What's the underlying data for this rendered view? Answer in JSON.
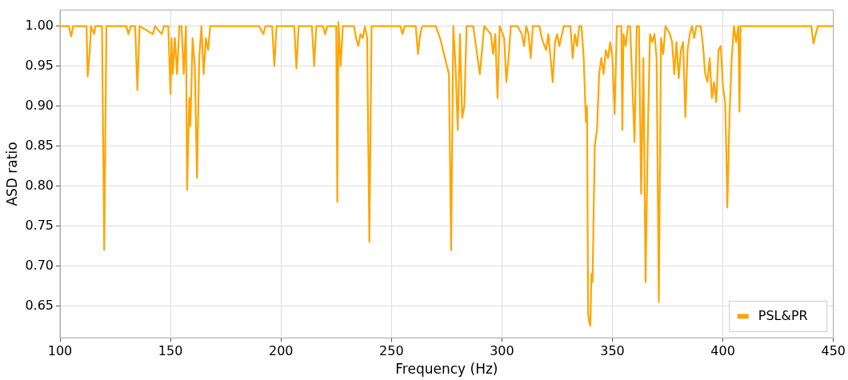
{
  "chart_data": {
    "type": "line",
    "xlabel": "Frequency (Hz)",
    "ylabel": "ASD ratio",
    "xlim": [
      100,
      450
    ],
    "xticks": [
      100,
      150,
      200,
      250,
      300,
      350,
      400,
      450
    ],
    "ylim": [
      0.61,
      1.02
    ],
    "yticks": [
      0.65,
      {
        "value": 0.7,
        "label": "0.70"
      },
      0.75,
      {
        "value": 0.8,
        "label": "0.80"
      },
      0.85,
      {
        "value": 0.9,
        "label": "0.90"
      },
      0.95,
      {
        "value": 1.0,
        "label": "1.00"
      }
    ],
    "grid": true,
    "legend": "bottom right",
    "marker": "none",
    "line_style": "solid",
    "series": [
      {
        "name": "PSL&PR",
        "color": "#ffa500",
        "x": [
          100,
          104,
          105,
          106,
          112,
          112.5,
          113.5,
          114,
          115.5,
          116,
          119,
          120,
          121,
          130,
          131,
          132,
          134,
          135,
          136,
          142,
          143,
          146,
          147,
          149,
          150,
          150.5,
          151,
          152,
          153,
          154,
          155,
          156,
          157,
          157.5,
          158.5,
          159,
          160,
          161,
          162,
          163,
          164,
          165,
          166,
          167,
          168,
          190,
          192,
          193,
          196,
          197,
          198,
          206,
          207,
          208,
          214,
          215,
          216,
          219,
          220,
          221,
          225,
          225.5,
          226,
          227,
          228,
          233,
          234,
          235,
          236,
          237,
          238,
          239,
          240,
          241,
          254,
          255,
          256,
          261,
          262,
          263,
          264,
          270,
          272,
          276,
          277,
          278,
          279,
          280,
          281,
          282,
          283,
          284,
          287,
          289,
          290,
          292,
          295,
          296,
          297,
          298,
          299,
          301,
          302,
          303,
          304,
          307,
          309,
          310,
          311,
          312,
          313,
          314,
          317,
          318,
          320,
          321,
          322,
          323,
          324,
          325,
          326,
          328,
          331,
          332,
          333,
          334,
          335,
          336,
          337,
          338,
          338.5,
          339,
          339.5,
          340,
          340.5,
          341,
          342,
          343,
          344,
          345,
          346,
          347,
          348,
          349,
          350,
          351,
          352,
          354,
          354.5,
          355,
          356,
          357,
          358,
          359,
          360,
          361,
          362,
          363,
          364,
          365,
          366,
          367,
          368,
          369,
          370,
          371,
          372,
          373,
          374,
          376,
          377,
          378,
          379,
          380,
          381,
          382,
          383,
          384,
          385,
          386,
          387,
          388,
          390,
          391,
          392,
          393,
          394,
          395,
          396,
          397,
          398,
          399,
          400,
          401,
          401.5,
          402,
          403,
          404,
          405,
          406,
          407,
          407.5,
          408,
          440,
          441,
          442,
          443,
          450
        ],
        "values": [
          1.0,
          1.0,
          0.987,
          1.0,
          1.0,
          0.937,
          0.97,
          1.0,
          0.99,
          1.0,
          1.0,
          0.72,
          1.0,
          1.0,
          0.99,
          1.0,
          1.0,
          0.92,
          1.0,
          0.99,
          1.0,
          0.99,
          1.0,
          1.0,
          0.915,
          0.985,
          0.94,
          0.985,
          0.94,
          1.0,
          1.0,
          0.94,
          1.0,
          0.795,
          0.91,
          0.875,
          0.985,
          0.95,
          0.81,
          0.96,
          1.0,
          0.94,
          0.985,
          0.97,
          1.0,
          1.0,
          0.99,
          1.0,
          1.0,
          0.95,
          1.0,
          1.0,
          0.947,
          1.0,
          1.0,
          0.95,
          1.0,
          1.0,
          0.99,
          1.0,
          1.0,
          0.78,
          1.005,
          0.95,
          1.0,
          1.0,
          0.985,
          0.975,
          0.99,
          0.985,
          1.0,
          0.985,
          0.73,
          1.0,
          1.0,
          0.99,
          1.0,
          1.0,
          0.965,
          0.99,
          1.0,
          1.0,
          0.985,
          0.94,
          0.72,
          1.0,
          0.95,
          0.87,
          0.99,
          0.885,
          0.9,
          1.0,
          1.0,
          0.96,
          0.94,
          1.0,
          0.99,
          0.965,
          0.99,
          0.91,
          1.0,
          0.985,
          0.93,
          0.96,
          1.0,
          1.0,
          0.99,
          0.975,
          1.0,
          0.99,
          0.96,
          1.0,
          1.0,
          0.985,
          0.97,
          0.99,
          0.96,
          0.93,
          0.98,
          0.99,
          0.975,
          1.0,
          1.0,
          0.96,
          0.99,
          0.975,
          1.0,
          1.0,
          0.96,
          0.88,
          0.9,
          0.64,
          0.63,
          0.625,
          0.69,
          0.68,
          0.85,
          0.87,
          0.94,
          0.96,
          0.94,
          0.97,
          0.96,
          0.98,
          0.96,
          0.89,
          1.0,
          1.0,
          0.87,
          0.99,
          0.975,
          1.0,
          1.0,
          0.93,
          0.855,
          1.0,
          1.0,
          0.79,
          0.96,
          0.68,
          0.86,
          0.99,
          0.98,
          0.99,
          0.96,
          0.655,
          0.985,
          0.965,
          1.0,
          0.99,
          0.98,
          0.94,
          0.98,
          0.935,
          0.97,
          0.98,
          0.886,
          0.97,
          0.99,
          1.0,
          0.985,
          1.0,
          1.0,
          0.975,
          0.94,
          0.93,
          0.96,
          0.91,
          0.93,
          0.905,
          0.97,
          0.975,
          0.925,
          0.905,
          0.85,
          0.773,
          0.89,
          0.96,
          1.0,
          0.98,
          1.0,
          0.893,
          1.0,
          1.0,
          0.978,
          0.99,
          1.0,
          1.0
        ]
      }
    ]
  }
}
